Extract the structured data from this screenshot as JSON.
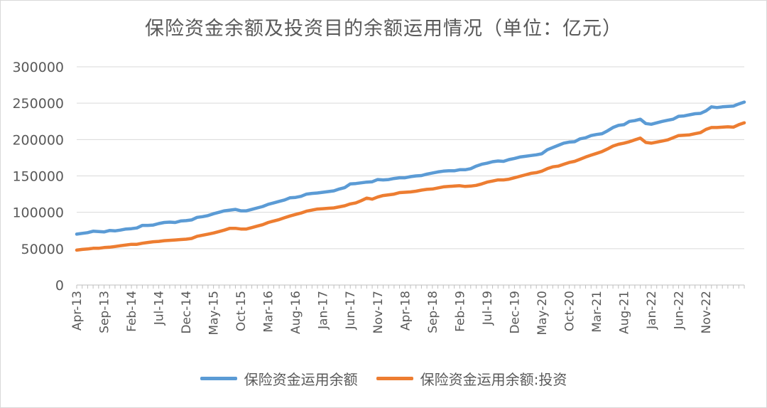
{
  "chart_data": {
    "type": "line",
    "title": "保险资金余额及投资目的余额运用情况（单位：亿元）",
    "ylim": [
      0,
      300000
    ],
    "yticks": [
      0,
      50000,
      100000,
      150000,
      200000,
      250000,
      300000
    ],
    "y_tick_labels": [
      "0",
      "50000",
      "100000",
      "150000",
      "200000",
      "250000",
      "300000"
    ],
    "x_start": "Apr-13",
    "x_tick_labels": [
      "Apr-13",
      "Sep-13",
      "Feb-14",
      "Jul-14",
      "Dec-14",
      "May-15",
      "Oct-15",
      "Mar-16",
      "Aug-16",
      "Jan-17",
      "Jun-17",
      "Nov-17",
      "Apr-18",
      "Sep-18",
      "Feb-19",
      "Jul-19",
      "Dec-19",
      "May-20",
      "Oct-20",
      "Mar-21",
      "Aug-21",
      "Jan-22",
      "Jun-22",
      "Nov-22"
    ],
    "grid": true,
    "legend_position": "bottom",
    "series": [
      {
        "name": "保险资金运用余额",
        "color": "#5b9bd5",
        "values": [
          70000,
          71000,
          72000,
          74000,
          73500,
          73000,
          75000,
          74500,
          75500,
          77000,
          77500,
          78500,
          82000,
          82000,
          82500,
          84500,
          86000,
          86500,
          86000,
          88000,
          88500,
          89500,
          93000,
          94000,
          95500,
          98000,
          100000,
          102000,
          103000,
          104000,
          102000,
          102000,
          104000,
          106000,
          108000,
          111000,
          113000,
          115000,
          117000,
          120000,
          120500,
          122000,
          125000,
          126000,
          126500,
          127500,
          128500,
          129500,
          132000,
          134000,
          139000,
          139500,
          140500,
          141500,
          142000,
          145000,
          144500,
          145000,
          146500,
          147500,
          147500,
          149000,
          150000,
          150500,
          152500,
          154000,
          155500,
          156500,
          157000,
          157000,
          158500,
          158500,
          160000,
          163500,
          166000,
          167500,
          169500,
          170500,
          170000,
          172500,
          174000,
          176000,
          177000,
          178000,
          179000,
          180500,
          186000,
          189000,
          192000,
          195000,
          196500,
          197000,
          201000,
          202500,
          205500,
          207000,
          208000,
          212000,
          216500,
          219500,
          220500,
          225000,
          226000,
          228000,
          222000,
          221000,
          223000,
          225000,
          226500,
          228000,
          232000,
          232500,
          234000,
          235500,
          236000,
          239500,
          245000,
          244000,
          245000,
          245500,
          246000,
          249000,
          251500
        ]
      },
      {
        "name": "保险资金运用余额:投资",
        "color": "#ed7d31",
        "values": [
          48000,
          49000,
          49500,
          50500,
          50500,
          51500,
          52000,
          53000,
          54000,
          55000,
          56000,
          56000,
          57500,
          58500,
          59500,
          60000,
          61000,
          61500,
          62000,
          62500,
          63000,
          64000,
          67000,
          68500,
          70000,
          71500,
          73500,
          75500,
          78000,
          78000,
          77000,
          77000,
          79000,
          81000,
          83000,
          86000,
          88000,
          90000,
          92500,
          95000,
          97000,
          99000,
          101500,
          103000,
          104500,
          105000,
          105500,
          106000,
          107500,
          109000,
          111500,
          113000,
          116000,
          119500,
          118000,
          121000,
          123000,
          124000,
          125000,
          127000,
          127500,
          128000,
          129000,
          130500,
          131500,
          132000,
          133500,
          135000,
          135500,
          136000,
          136500,
          135500,
          136000,
          137000,
          139000,
          141500,
          143000,
          144500,
          144500,
          145500,
          147500,
          149500,
          151500,
          153500,
          154500,
          156500,
          160000,
          162500,
          163500,
          166000,
          168500,
          170000,
          173000,
          176000,
          178500,
          181000,
          183500,
          187000,
          191000,
          193500,
          195000,
          197000,
          199500,
          202000,
          196000,
          195000,
          196500,
          198000,
          199500,
          202500,
          205500,
          206000,
          206500,
          208000,
          209500,
          214000,
          216500,
          216500,
          217000,
          217500,
          217000,
          220500,
          223000
        ]
      }
    ]
  }
}
